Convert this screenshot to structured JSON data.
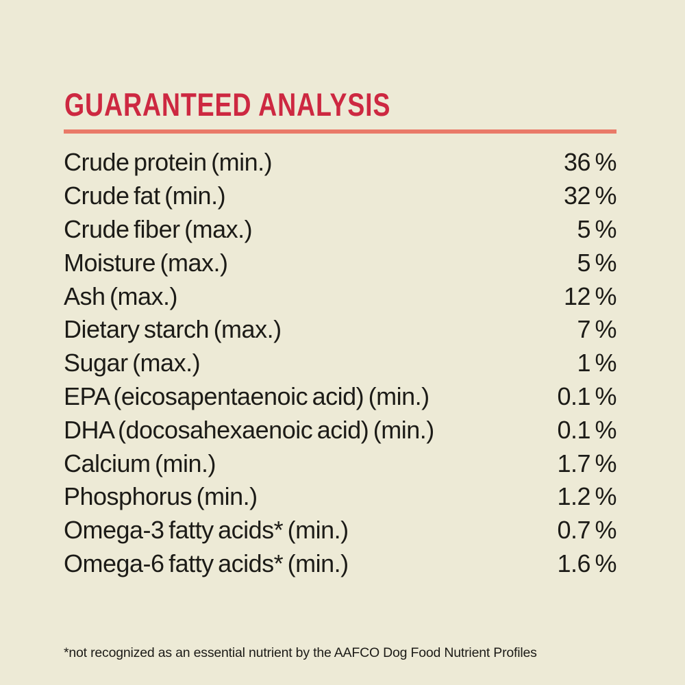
{
  "page": {
    "background": "#edead6",
    "accent_red": "#cd2841",
    "divider_color": "#e97a68",
    "text_color": "#1c1b17"
  },
  "header": {
    "title": "GUARANTEED ANALYSIS"
  },
  "table": {
    "rows": [
      {
        "label": "Crude protein (min.)",
        "value": "36 %"
      },
      {
        "label": "Crude fat (min.)",
        "value": "32 %"
      },
      {
        "label": "Crude fiber (max.)",
        "value": "5 %"
      },
      {
        "label": "Moisture (max.)",
        "value": "5 %"
      },
      {
        "label": "Ash (max.)",
        "value": "12 %"
      },
      {
        "label": "Dietary starch (max.)",
        "value": "7 %"
      },
      {
        "label": "Sugar (max.)",
        "value": "1 %"
      },
      {
        "label": "EPA (eicosapentaenoic acid) (min.)",
        "value": "0.1 %"
      },
      {
        "label": "DHA (docosahexaenoic acid) (min.)",
        "value": "0.1 %"
      },
      {
        "label": "Calcium (min.)",
        "value": "1.7 %"
      },
      {
        "label": "Phosphorus (min.)",
        "value": "1.2 %"
      },
      {
        "label": "Omega-3 fatty acids* (min.)",
        "value": "0.7 %"
      },
      {
        "label": "Omega-6 fatty acids* (min.)",
        "value": "1.6 %"
      }
    ]
  },
  "footnote": {
    "text": "*not recognized as an essential nutrient by the AAFCO Dog Food Nutrient Profiles"
  }
}
